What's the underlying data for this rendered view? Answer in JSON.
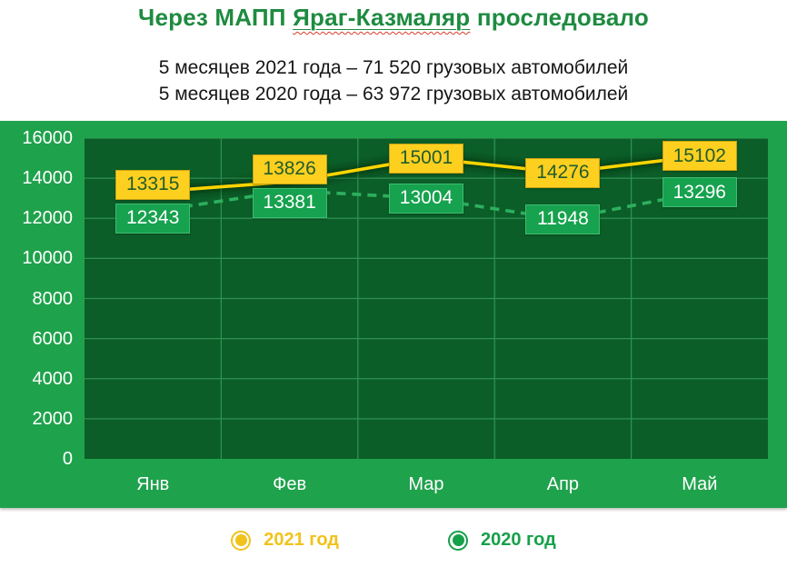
{
  "title": {
    "prefix": "Через МАПП ",
    "highlight": "Яраг-Казмаляр",
    "suffix": " проследовало"
  },
  "subtitle": {
    "line1": "5 месяцев 2021 года – 71 520 грузовых автомобилей",
    "line2": "5 месяцев 2020 года – 63 972 грузовых автомобилей"
  },
  "legend": {
    "items": [
      {
        "label": "2021 год",
        "color": "#f2c21c"
      },
      {
        "label": "2020 год",
        "color": "#17a04a"
      }
    ]
  },
  "colors": {
    "title_green": "#1e8b40",
    "band_green": "#1fa24c",
    "plot_dark_green": "#0b5e28",
    "gridline_green": "#2f9152",
    "spellcheck_red": "#d93b2b",
    "white": "#ffffff"
  },
  "chart_data": {
    "type": "line",
    "categories": [
      "Янв",
      "Фев",
      "Мар",
      "Апр",
      "Май"
    ],
    "series": [
      {
        "name": "2021 год",
        "values": [
          13315,
          13826,
          15001,
          14276,
          15102
        ],
        "color": "#ffd400",
        "style": "solid",
        "label_bg": "#fdd020",
        "label_border": "#c9a312",
        "label_text": "#215c2c"
      },
      {
        "name": "2020 год",
        "values": [
          12343,
          13381,
          13004,
          11948,
          13296
        ],
        "color": "#2db05e",
        "style": "dashed",
        "label_bg": "#16a24e",
        "label_border": "#3fbd72",
        "label_text": "#ffffff"
      }
    ],
    "title": "Через МАПП Яраг-Казмаляр проследовало",
    "xlabel": "",
    "ylabel": "",
    "ylim": [
      0,
      16000
    ],
    "ytick_step": 2000,
    "yticks": [
      0,
      2000,
      4000,
      6000,
      8000,
      10000,
      12000,
      14000,
      16000
    ],
    "grid": true,
    "legend_position": "bottom"
  }
}
